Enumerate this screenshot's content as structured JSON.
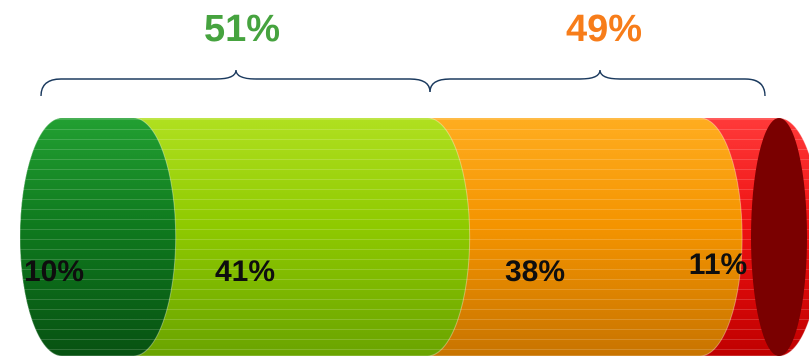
{
  "chart_data": {
    "type": "bar",
    "orientation": "horizontal-stacked",
    "segments": [
      {
        "label": "10%",
        "value": 10,
        "color": "#0e7a1c"
      },
      {
        "label": "41%",
        "value": 41,
        "color": "#8fcc00"
      },
      {
        "label": "38%",
        "value": 38,
        "color": "#f59400"
      },
      {
        "label": "11%",
        "value": 11,
        "color": "#ee1111"
      }
    ],
    "groups": [
      {
        "label": "51%",
        "value": 51,
        "color": "#46a33f"
      },
      {
        "label": "49%",
        "value": 49,
        "color": "#f77d1a"
      }
    ]
  }
}
